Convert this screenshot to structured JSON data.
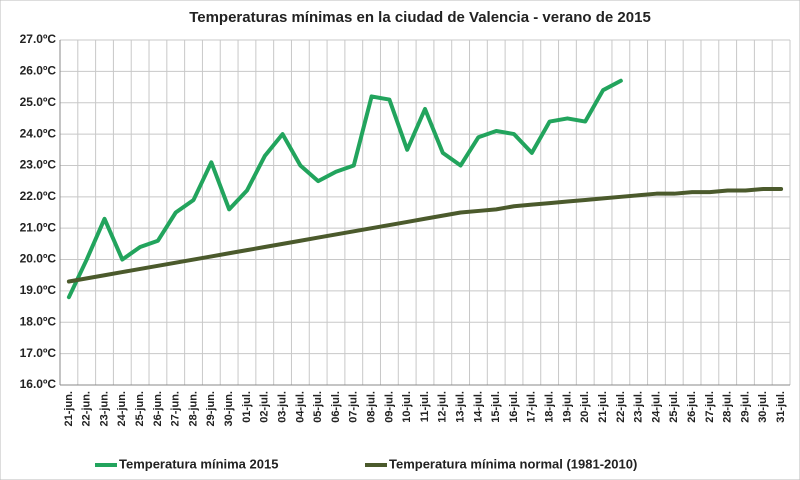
{
  "chart_data": {
    "type": "line",
    "title": "Temperaturas mínimas en la ciudad de Valencia - verano de 2015",
    "categories": [
      "21-jun.",
      "22-jun.",
      "23-jun.",
      "24-jun.",
      "25-jun.",
      "26-jun.",
      "27-jun.",
      "28-jun.",
      "29-jun.",
      "30-jun.",
      "01-jul.",
      "02-jul.",
      "03-jul.",
      "04-jul.",
      "05-jul.",
      "06-jul.",
      "07-jul.",
      "08-jul.",
      "09-jul.",
      "10-jul.",
      "11-jul.",
      "12-jul.",
      "13-jul.",
      "14-jul.",
      "15-jul.",
      "16-jul.",
      "17-jul.",
      "18-jul.",
      "19-jul.",
      "20-jul.",
      "21-jul.",
      "22-jul.",
      "23-jul.",
      "24-jul.",
      "25-jul.",
      "26-jul.",
      "27-jul.",
      "28-jul.",
      "29-jul.",
      "30-jul.",
      "31-jul."
    ],
    "series": [
      {
        "name": "Temperatura mínima 2015",
        "color": "#22a45d",
        "values": [
          18.8,
          20.0,
          21.3,
          20.0,
          20.4,
          20.6,
          21.5,
          21.9,
          23.1,
          21.6,
          22.2,
          23.3,
          24.0,
          23.0,
          22.5,
          22.8,
          23.0,
          25.2,
          25.1,
          23.5,
          24.8,
          23.4,
          23.0,
          23.9,
          24.1,
          24.0,
          23.4,
          24.4,
          24.5,
          24.4,
          25.4,
          25.7,
          null,
          null,
          null,
          null,
          null,
          null,
          null,
          null,
          null
        ]
      },
      {
        "name": "Temperatura mínima normal (1981-2010)",
        "color": "#4b5a2c",
        "values": [
          19.3,
          19.4,
          19.5,
          19.6,
          19.7,
          19.8,
          19.9,
          20.0,
          20.1,
          20.2,
          20.3,
          20.4,
          20.5,
          20.6,
          20.7,
          20.8,
          20.9,
          21.0,
          21.1,
          21.2,
          21.3,
          21.4,
          21.5,
          21.55,
          21.6,
          21.7,
          21.75,
          21.8,
          21.85,
          21.9,
          21.95,
          22.0,
          22.05,
          22.1,
          22.1,
          22.15,
          22.15,
          22.2,
          22.2,
          22.25,
          22.25
        ]
      }
    ],
    "ylim": [
      16,
      27
    ],
    "yticks": [
      {
        "value": 16,
        "label": "16.0ºC"
      },
      {
        "value": 17,
        "label": "17.0ºC"
      },
      {
        "value": 18,
        "label": "18.0ºC"
      },
      {
        "value": 19,
        "label": "19.0ºC"
      },
      {
        "value": 20,
        "label": "20.0ºC"
      },
      {
        "value": 21,
        "label": "21.0ºC"
      },
      {
        "value": 22,
        "label": "22.0ºC"
      },
      {
        "value": 23,
        "label": "23.0ºC"
      },
      {
        "value": 24,
        "label": "24.0ºC"
      },
      {
        "value": 25,
        "label": "25.0ºC"
      },
      {
        "value": 26,
        "label": "26.0ºC"
      },
      {
        "value": 27,
        "label": "27.0ºC"
      }
    ],
    "grid": true,
    "legend": "bottom"
  }
}
